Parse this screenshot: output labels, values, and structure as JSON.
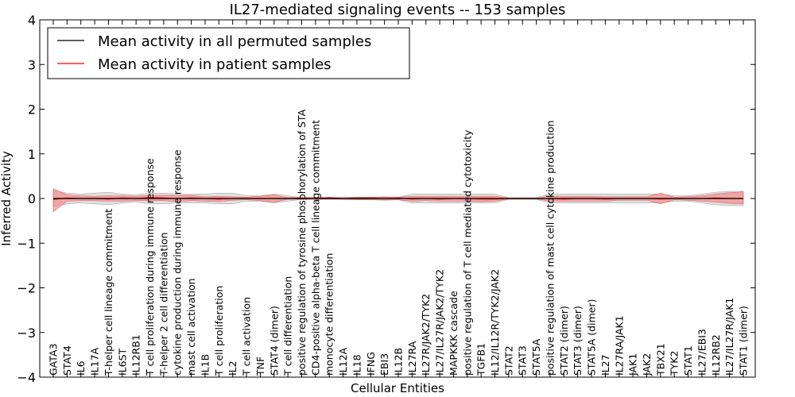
{
  "chart_data": {
    "type": "line",
    "title": "IL27-mediated signaling events -- 153 samples",
    "xlabel": "Cellular Entities",
    "ylabel": "Inferred Activity",
    "ylim": [
      -4,
      4
    ],
    "yticks": [
      "−4",
      "−3",
      "−2",
      "−1",
      "0",
      "1",
      "2",
      "3",
      "4"
    ],
    "legend_position": "top-left",
    "colors": {
      "permuted": "#000000",
      "patient": "#ff0000",
      "patient_band": "#f28b8b",
      "permuted_band": "#c8c8c8"
    },
    "categories": [
      "GATA3",
      "STAT4",
      "IL6",
      "IL17A",
      "T-helper cell lineage commitment",
      "IL6ST",
      "IL12RB1",
      "T cell proliferation during immune response",
      "T-helper 2 cell differentiation",
      "cytokine production during immune response",
      "mast cell activation",
      "IL1B",
      "T cell proliferation",
      "IL2",
      "T cell activation",
      "TNF",
      "STAT4 (dimer)",
      "T cell differentiation",
      "positive regulation of tyrosine phosphorylation of STA",
      "CD4-positive alpha-beta T cell lineage commitment",
      "monocyte differentiation",
      "IL12A",
      "IL18",
      "IFNG",
      "EBI3",
      "IL12B",
      "IL27RA",
      "IL27R/JAK2/TYK2",
      "IL27/IL27R/JAK2/TYK2",
      "MAPKKK cascade",
      "positive regulation of T cell mediated cytotoxicity",
      "TGFB1",
      "IL12/IL12R/TYK2/JAK2",
      "STAT2",
      "STAT3",
      "STAT5A",
      "positive regulation of mast cell cytokine production",
      "STAT2 (dimer)",
      "STAT3 (dimer)",
      "STAT5A (dimer)",
      "IL27",
      "IL27RA/JAK1",
      "JAK1",
      "JAK2",
      "TBX21",
      "TYK2",
      "STAT1",
      "IL27/EBI3",
      "IL12RB2",
      "IL27/IL27R/JAK1",
      "STAT1 (dimer)"
    ],
    "series": [
      {
        "name": "Mean activity in all permuted samples",
        "values": [
          0,
          0,
          0,
          0,
          0,
          0,
          0,
          0,
          0,
          0,
          0,
          0,
          0,
          0,
          0,
          0,
          0,
          0,
          0,
          0,
          0,
          0,
          0,
          0,
          0,
          0,
          0,
          0,
          0,
          0,
          0,
          0,
          0,
          0,
          0,
          0,
          0,
          0,
          0,
          0,
          0,
          0,
          0,
          0,
          0,
          0,
          0,
          0,
          0,
          0,
          0
        ],
        "band_upper": [
          0.18,
          0.12,
          0.1,
          0.12,
          0.14,
          0.1,
          0.08,
          0.12,
          0.12,
          0.1,
          0.1,
          0.1,
          0.12,
          0.12,
          0.06,
          0.06,
          0.1,
          0.06,
          0.02,
          0.02,
          0.02,
          0.02,
          0.03,
          0.03,
          0.04,
          0.03,
          0.1,
          0.1,
          0.1,
          0.1,
          0.1,
          0.1,
          0.1,
          0.02,
          0.02,
          0.02,
          0.1,
          0.1,
          0.1,
          0.1,
          0.1,
          0.1,
          0.1,
          0.1,
          0.1,
          0.06,
          0.06,
          0.1,
          0.14,
          0.16,
          0.16
        ],
        "band_lower": [
          -0.18,
          -0.12,
          -0.1,
          -0.12,
          -0.14,
          -0.1,
          -0.08,
          -0.12,
          -0.12,
          -0.1,
          -0.1,
          -0.1,
          -0.12,
          -0.12,
          -0.06,
          -0.06,
          -0.1,
          -0.06,
          -0.02,
          -0.02,
          -0.02,
          -0.02,
          -0.03,
          -0.03,
          -0.04,
          -0.03,
          -0.1,
          -0.1,
          -0.1,
          -0.1,
          -0.1,
          -0.1,
          -0.1,
          -0.02,
          -0.02,
          -0.02,
          -0.1,
          -0.1,
          -0.1,
          -0.1,
          -0.1,
          -0.1,
          -0.1,
          -0.1,
          -0.1,
          -0.06,
          -0.06,
          -0.1,
          -0.14,
          -0.16,
          -0.16
        ]
      },
      {
        "name": "Mean activity in patient samples",
        "values": [
          -0.02,
          0.01,
          0,
          0,
          -0.01,
          0.01,
          0,
          0.02,
          0.01,
          0,
          0.01,
          0,
          -0.01,
          0,
          0,
          0,
          0,
          0,
          0.01,
          0,
          0.02,
          0,
          0.01,
          0.01,
          0,
          0.01,
          -0.01,
          0,
          -0.01,
          0,
          0,
          -0.01,
          -0.01,
          0,
          0,
          0,
          0,
          -0.01,
          0,
          0,
          -0.01,
          0,
          0,
          0,
          -0.01,
          0,
          0,
          0,
          0.01,
          0,
          0
        ],
        "band_upper": [
          0.22,
          0.08,
          0.06,
          0.05,
          0.06,
          0.06,
          0.05,
          0.07,
          0.07,
          0.07,
          0.07,
          0.04,
          0.05,
          0.04,
          0.03,
          0.05,
          0.08,
          0.02,
          0.02,
          0.02,
          0.02,
          0.02,
          0.02,
          0.02,
          0.03,
          0.03,
          0.05,
          0.05,
          0.05,
          0.05,
          0.05,
          0.05,
          0.05,
          0.01,
          0.01,
          0.01,
          0.05,
          0.05,
          0.05,
          0.05,
          0.04,
          0.04,
          0.04,
          0.04,
          0.12,
          0.03,
          0.04,
          0.06,
          0.1,
          0.13,
          0.15
        ],
        "band_lower": [
          -0.3,
          -0.06,
          -0.05,
          -0.05,
          -0.06,
          -0.06,
          -0.05,
          -0.05,
          -0.05,
          -0.07,
          -0.05,
          -0.06,
          -0.07,
          -0.04,
          -0.03,
          -0.05,
          -0.08,
          -0.02,
          -0.02,
          -0.02,
          -0.01,
          -0.02,
          -0.02,
          -0.02,
          -0.03,
          -0.03,
          -0.06,
          -0.05,
          -0.06,
          -0.06,
          -0.06,
          -0.07,
          -0.06,
          -0.01,
          -0.01,
          -0.01,
          -0.06,
          -0.06,
          -0.06,
          -0.06,
          -0.06,
          -0.04,
          -0.04,
          -0.04,
          -0.12,
          -0.03,
          -0.04,
          -0.06,
          -0.08,
          -0.11,
          -0.12
        ]
      }
    ]
  }
}
